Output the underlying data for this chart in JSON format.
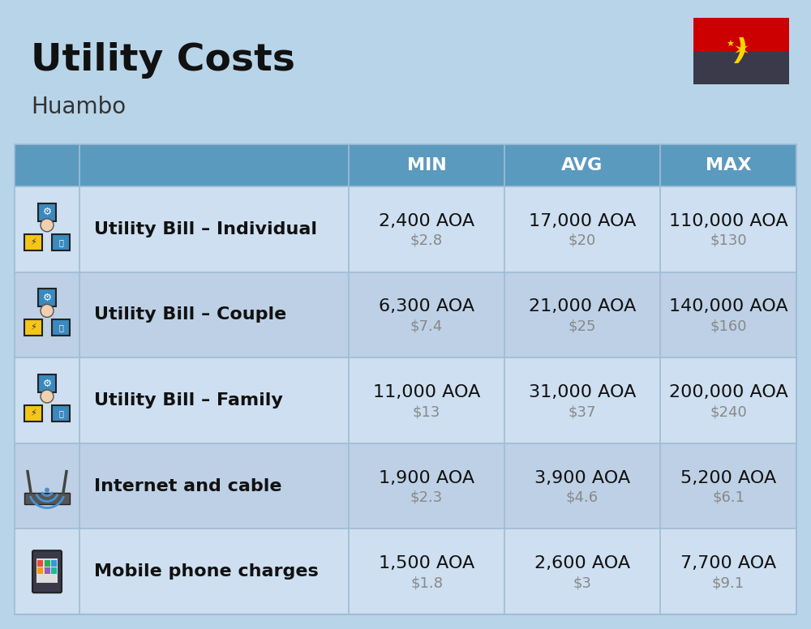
{
  "title": "Utility Costs",
  "subtitle": "Huambo",
  "bg_color": "#b8d4e8",
  "header_color": "#5b9abf",
  "header_text_color": "#ffffff",
  "row_bg_odd": "#cddff0",
  "row_bg_even": "#bdd0e5",
  "cell_line_color": "#a0bcd4",
  "columns": [
    "MIN",
    "AVG",
    "MAX"
  ],
  "rows": [
    {
      "label": "Utility Bill – Individual",
      "min_aoa": "2,400 AOA",
      "min_usd": "$2.8",
      "avg_aoa": "17,000 AOA",
      "avg_usd": "$20",
      "max_aoa": "110,000 AOA",
      "max_usd": "$130"
    },
    {
      "label": "Utility Bill – Couple",
      "min_aoa": "6,300 AOA",
      "min_usd": "$7.4",
      "avg_aoa": "21,000 AOA",
      "avg_usd": "$25",
      "max_aoa": "140,000 AOA",
      "max_usd": "$160"
    },
    {
      "label": "Utility Bill – Family",
      "min_aoa": "11,000 AOA",
      "min_usd": "$13",
      "avg_aoa": "31,000 AOA",
      "avg_usd": "$37",
      "max_aoa": "200,000 AOA",
      "max_usd": "$240"
    },
    {
      "label": "Internet and cable",
      "min_aoa": "1,900 AOA",
      "min_usd": "$2.3",
      "avg_aoa": "3,900 AOA",
      "avg_usd": "$4.6",
      "max_aoa": "5,200 AOA",
      "max_usd": "$6.1"
    },
    {
      "label": "Mobile phone charges",
      "min_aoa": "1,500 AOA",
      "min_usd": "$1.8",
      "avg_aoa": "2,600 AOA",
      "avg_usd": "$3",
      "max_aoa": "7,700 AOA",
      "max_usd": "$9.1"
    }
  ],
  "title_fontsize": 34,
  "subtitle_fontsize": 20,
  "header_fontsize": 16,
  "label_fontsize": 16,
  "value_fontsize": 16,
  "usd_fontsize": 13,
  "usd_color": "#888888",
  "label_color": "#111111",
  "value_color": "#111111"
}
